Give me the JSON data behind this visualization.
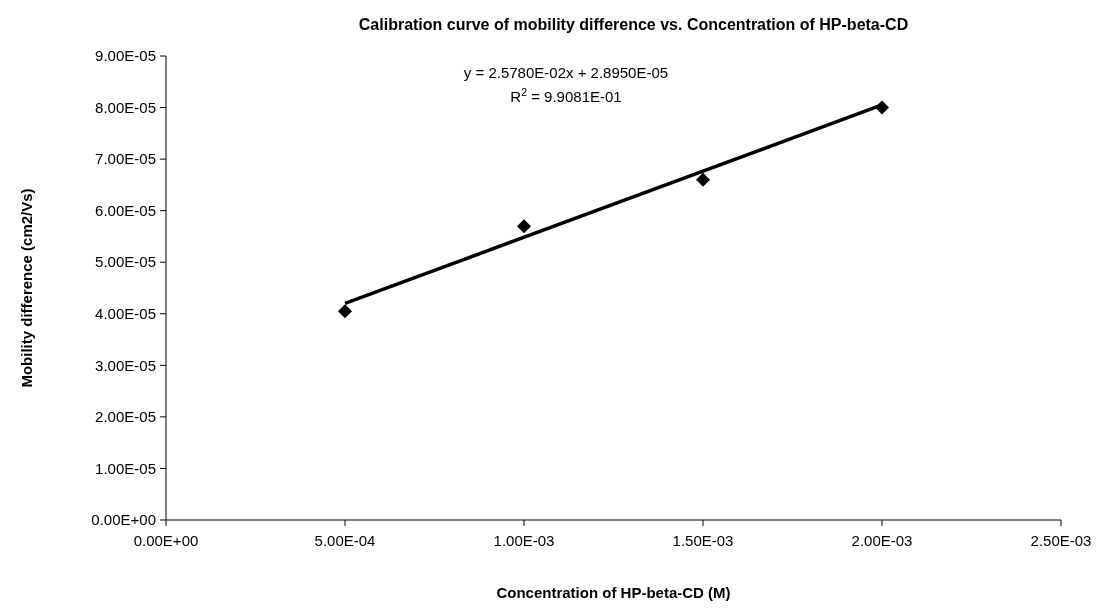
{
  "chart_data": {
    "type": "scatter",
    "title": "Calibration curve of mobility difference vs. Concentration of HP-beta-CD",
    "xlabel": "Concentration of HP-beta-CD (M)",
    "ylabel": "Mobility difference (cm2/Vs)",
    "x": [
      0.0005,
      0.001,
      0.0015,
      0.002
    ],
    "series": [
      {
        "color": "#000000",
        "marker": "diamond",
        "values": [
          4.05e-05,
          5.7e-05,
          6.6e-05,
          8e-05
        ]
      },
      {
        "type": "line",
        "color": "#000000",
        "marker": "none",
        "x": [
          0.0005,
          0.002
        ],
        "values": [
          4.2e-05,
          8.05e-05
        ]
      }
    ],
    "annotations": [
      "y = 2.5780E-02x + 2.8950E-05",
      "R$^{2}$ = 9.9081E-01"
    ],
    "xlim": [
      0,
      0.0025
    ],
    "xticks": [
      {
        "value": 0,
        "label": "0.00E+00"
      },
      {
        "value": 0.0005,
        "label": "5.00E-04"
      },
      {
        "value": 0.001,
        "label": "1.00E-03"
      },
      {
        "value": 0.0015,
        "label": "1.50E-03"
      },
      {
        "value": 0.002,
        "label": "2.00E-03"
      },
      {
        "value": 0.0025,
        "label": "2.50E-03"
      }
    ],
    "ylim": [
      0,
      9e-05
    ],
    "yticks": [
      {
        "value": 0,
        "label": "0.00E+00"
      },
      {
        "value": 1e-05,
        "label": "1.00E-05"
      },
      {
        "value": 2e-05,
        "label": "2.00E-05"
      },
      {
        "value": 3e-05,
        "label": "3.00E-05"
      },
      {
        "value": 4e-05,
        "label": "4.00E-05"
      },
      {
        "value": 5e-05,
        "label": "5.00E-05"
      },
      {
        "value": 6e-05,
        "label": "6.00E-05"
      },
      {
        "value": 7e-05,
        "label": "7.00E-05"
      },
      {
        "value": 8e-05,
        "label": "8.00E-05"
      },
      {
        "value": 9e-05,
        "label": "9.00E-05"
      }
    ],
    "grid": false
  }
}
